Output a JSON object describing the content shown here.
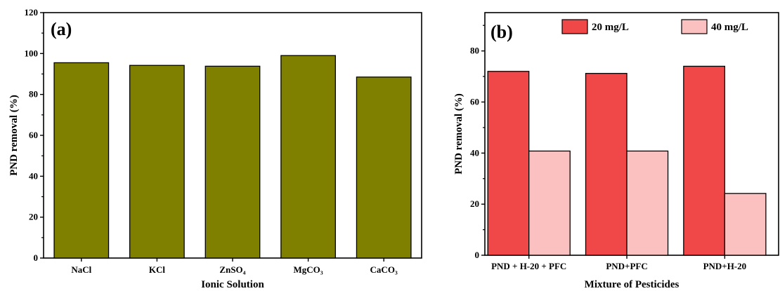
{
  "chart_data": [
    {
      "type": "bar",
      "panel_label": "(a)",
      "categories": [
        "NaCl",
        "KCl",
        "ZnSO₄",
        "MgCO₃",
        "CaCO₃"
      ],
      "values": [
        95.5,
        94.2,
        93.8,
        99.0,
        88.5
      ],
      "xlabel": "Ionic Solution",
      "ylabel": "PND removal (%)",
      "ylim": [
        0,
        120
      ],
      "yticks": [
        0,
        20,
        40,
        60,
        80,
        100,
        120
      ],
      "bar_color": "#808000",
      "grid": false
    },
    {
      "type": "bar",
      "panel_label": "(b)",
      "categories": [
        "PND + H-20 + PFC",
        "PND+PFC",
        "PND+H-20"
      ],
      "series": [
        {
          "name": "20 mg/L",
          "values": [
            72.0,
            71.2,
            74.0
          ],
          "color": "#f04848"
        },
        {
          "name": "40 mg/L",
          "values": [
            40.8,
            40.8,
            24.2
          ],
          "color": "#fbc0c0"
        }
      ],
      "xlabel": "Mixture of Pesticides",
      "ylabel": "PND removal (%)",
      "ylim": [
        0,
        95
      ],
      "yticks": [
        0,
        20,
        40,
        60,
        80
      ],
      "legend_position": "top",
      "grid": false
    }
  ]
}
